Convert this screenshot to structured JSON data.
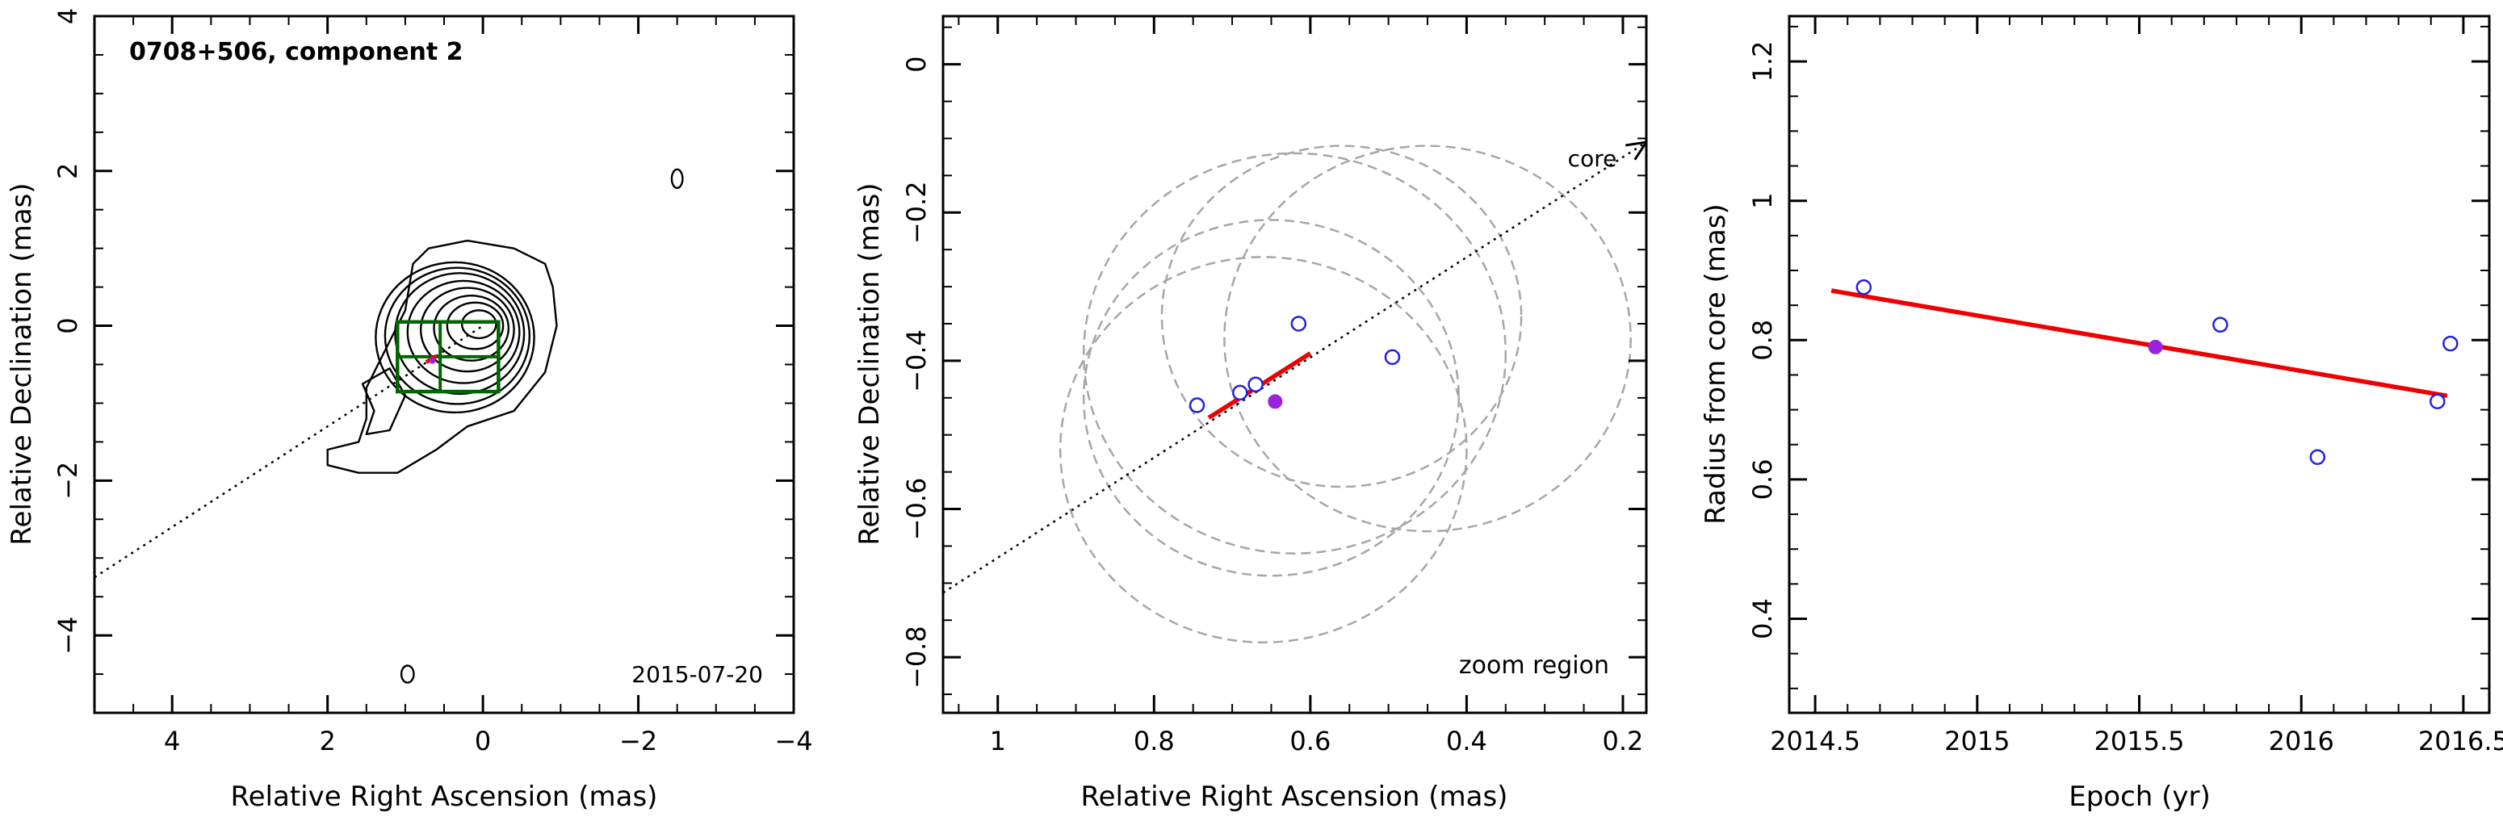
{
  "chart_data": [
    {
      "type": "contour",
      "title": "0708+506, component 2",
      "date_label": "2015-07-20",
      "xlabel": "Relative Right Ascension (mas)",
      "ylabel": "Relative Declination (mas)",
      "xlim": [
        5,
        -4
      ],
      "ylim": [
        -5,
        4
      ],
      "xticks": [
        4,
        2,
        0,
        -2,
        -4
      ],
      "yticks": [
        -4,
        -2,
        0,
        2,
        4
      ],
      "core": {
        "x": 0,
        "y": 0
      },
      "contour_levels": [
        {
          "cx": 0.05,
          "cy": 0.02,
          "rx": 0.22,
          "ry": 0.18
        },
        {
          "cx": 0.1,
          "cy": 0.0,
          "rx": 0.36,
          "ry": 0.3
        },
        {
          "cx": 0.15,
          "cy": -0.03,
          "rx": 0.48,
          "ry": 0.42
        },
        {
          "cx": 0.2,
          "cy": -0.05,
          "rx": 0.6,
          "ry": 0.54
        },
        {
          "cx": 0.25,
          "cy": -0.08,
          "rx": 0.72,
          "ry": 0.66
        },
        {
          "cx": 0.3,
          "cy": -0.1,
          "rx": 0.83,
          "ry": 0.78
        },
        {
          "cx": 0.33,
          "cy": -0.13,
          "rx": 0.93,
          "ry": 0.88
        },
        {
          "cx": 0.36,
          "cy": -0.15,
          "rx": 1.02,
          "ry": 0.97
        }
      ],
      "jet_outer": [
        [
          -0.9,
          0.5
        ],
        [
          -0.95,
          0.0
        ],
        [
          -0.8,
          -0.6
        ],
        [
          -0.4,
          -1.1
        ],
        [
          0.2,
          -1.3
        ],
        [
          0.6,
          -1.6
        ],
        [
          1.1,
          -1.9
        ],
        [
          1.6,
          -1.9
        ],
        [
          2.0,
          -1.8
        ],
        [
          2.0,
          -1.6
        ],
        [
          1.6,
          -1.5
        ],
        [
          1.5,
          -1.2
        ],
        [
          1.5,
          -0.8
        ],
        [
          1.3,
          -0.4
        ],
        [
          1.0,
          0.2
        ],
        [
          0.9,
          0.8
        ],
        [
          0.7,
          1.0
        ],
        [
          0.2,
          1.1
        ],
        [
          -0.4,
          1.0
        ],
        [
          -0.8,
          0.8
        ]
      ],
      "jet_inner": [
        [
          1.5,
          -1.4
        ],
        [
          1.4,
          -1.1
        ],
        [
          1.55,
          -0.75
        ],
        [
          1.2,
          -0.55
        ],
        [
          1.0,
          -0.9
        ],
        [
          1.2,
          -1.35
        ]
      ],
      "islands": [
        {
          "x": -2.5,
          "y": 1.9,
          "rx": 0.07,
          "ry": 0.12
        },
        {
          "x": 0.97,
          "y": -4.5,
          "rx": 0.08,
          "ry": 0.11
        }
      ],
      "dotted_line": {
        "x1": 5,
        "y1": -3.25,
        "x2": 0,
        "y2": 0
      },
      "zoom_box": {
        "x1": 1.1,
        "x2": -0.2,
        "y1": -0.85,
        "y2": 0.05
      },
      "zoom_box_mid": {
        "x": 0.55,
        "y": -0.4
      },
      "trajectory": {
        "x1": 0.73,
        "y1": -0.47,
        "x2": 0.6,
        "y2": -0.39
      },
      "mean_point": {
        "x": 0.65,
        "y": -0.45
      }
    },
    {
      "type": "scatter",
      "label": "zoom region",
      "annotation": "core",
      "xlabel": "Relative Right Ascension (mas)",
      "ylabel": "Relative Declination (mas)",
      "xlim": [
        1.07,
        0.17
      ],
      "ylim": [
        -0.875,
        0.065
      ],
      "xticks": [
        1,
        0.8,
        0.6,
        0.4,
        0.2
      ],
      "xtick_labels": [
        "1",
        "0.8",
        "0.6",
        "0.4",
        "0.2"
      ],
      "yticks": [
        -0.8,
        -0.6,
        -0.4,
        -0.2,
        0
      ],
      "ytick_labels": [
        "−0.8",
        "−0.6",
        "−0.4",
        "−0.2",
        "0"
      ],
      "points": [
        {
          "x": 0.745,
          "y": -0.46
        },
        {
          "x": 0.69,
          "y": -0.443
        },
        {
          "x": 0.67,
          "y": -0.432
        },
        {
          "x": 0.615,
          "y": -0.35
        },
        {
          "x": 0.495,
          "y": -0.395
        }
      ],
      "mean_point": {
        "x": 0.645,
        "y": -0.455
      },
      "trajectory": {
        "x1": 0.73,
        "y1": -0.477,
        "x2": 0.6,
        "y2": -0.39
      },
      "ellipses": [
        {
          "cx": 0.65,
          "cy": -0.45,
          "r": 0.24
        },
        {
          "cx": 0.62,
          "cy": -0.39,
          "r": 0.27
        },
        {
          "cx": 0.56,
          "cy": -0.34,
          "r": 0.23
        },
        {
          "cx": 0.45,
          "cy": -0.37,
          "r": 0.26
        },
        {
          "cx": 0.66,
          "cy": -0.52,
          "r": 0.26
        }
      ],
      "dotted_line": {
        "x1": 1.07,
        "y1": -0.713,
        "x2": 0.17,
        "y2": -0.105
      }
    },
    {
      "type": "scatter",
      "xlabel": "Epoch (yr)",
      "ylabel": "Radius from core (mas)",
      "xlim": [
        2014.42,
        2016.58
      ],
      "ylim": [
        0.265,
        1.265
      ],
      "xticks": [
        2014.5,
        2015,
        2015.5,
        2016,
        2016.5
      ],
      "xtick_labels": [
        "2014.5",
        "2015",
        "2015.5",
        "2016",
        "2016.5"
      ],
      "yticks": [
        0.4,
        0.6,
        0.8,
        1.0,
        1.2
      ],
      "ytick_labels": [
        "0.4",
        "0.6",
        "0.8",
        "1",
        "1.2"
      ],
      "points": [
        {
          "x": 2014.65,
          "y": 0.876
        },
        {
          "x": 2015.75,
          "y": 0.822
        },
        {
          "x": 2016.05,
          "y": 0.632
        },
        {
          "x": 2016.42,
          "y": 0.712
        },
        {
          "x": 2016.46,
          "y": 0.795
        }
      ],
      "mean_point": {
        "x": 2015.55,
        "y": 0.79
      },
      "fit_line": {
        "x1": 2014.55,
        "y1": 0.871,
        "x2": 2016.45,
        "y2": 0.72
      }
    }
  ],
  "colors": {
    "open_point": "#2222dd",
    "mean_point": "#9922dd",
    "fit": "#ee0000",
    "box": "#006600",
    "ellipse": "#a6a6a6"
  }
}
